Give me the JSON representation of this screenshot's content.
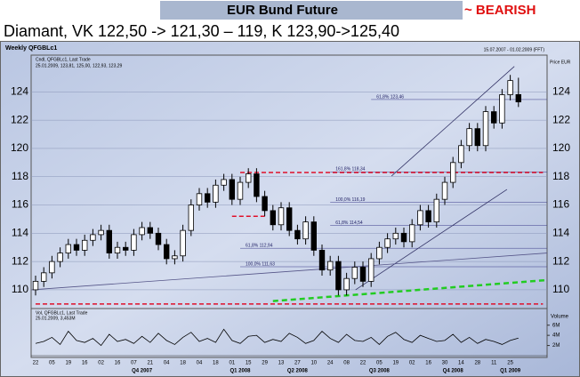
{
  "chart_data": {
    "type": "candlestick",
    "header": "EUR Bund Future",
    "signal": "~ BEARISH",
    "title": "Diamant, VK 122,50 -> 121,30 – 119, K 123,90->125,40",
    "panel_title": "Weekly QFGBLc1",
    "date_range": "15.07.2007 - 01.02.2009 (FFT)",
    "price_label": "Price EUR",
    "legend": [
      "Cndl, QFGBLc1, Last Trade",
      "25.01.2009, 123,81, 125,00, 122,93, 123,29"
    ],
    "volume_legend": [
      "Vol, QFGBLc1, Last Trade",
      "25.01.2009, 3,453M"
    ],
    "volume_label": "Volume",
    "categories": [
      "22",
      null,
      "05",
      null,
      "19",
      null,
      "16",
      null,
      "02",
      null,
      "16",
      null,
      "07",
      null,
      "21",
      null,
      "04",
      null,
      "18",
      null,
      "04",
      null,
      "18",
      null,
      "01",
      null,
      "15",
      null,
      "29",
      null,
      "13",
      null,
      "27",
      null,
      "10",
      null,
      "24",
      null,
      "08",
      null,
      "22",
      null,
      "05",
      null,
      "19",
      null,
      "02",
      null,
      "16",
      null,
      "30",
      null,
      "14",
      null,
      "28",
      null,
      "11",
      null,
      "25",
      null
    ],
    "quarters": [
      {
        "label": "Q4 2007",
        "index": 13
      },
      {
        "label": "Q1 2008",
        "index": 25
      },
      {
        "label": "Q2 2008",
        "index": 32
      },
      {
        "label": "Q3 2008",
        "index": 42
      },
      {
        "label": "Q4 2008",
        "index": 51
      },
      {
        "label": "Q1 2009",
        "index": 58
      }
    ],
    "open": [
      110.0,
      110.6,
      111.2,
      112.0,
      112.6,
      113.2,
      112.8,
      113.5,
      113.9,
      114.2,
      112.6,
      113.0,
      112.8,
      113.9,
      114.4,
      114.0,
      113.2,
      112.2,
      112.4,
      114.2,
      116.0,
      116.8,
      116.2,
      117.4,
      117.8,
      116.4,
      117.6,
      118.2,
      116.6,
      115.6,
      114.6,
      115.8,
      114.2,
      113.6,
      114.8,
      112.8,
      111.4,
      112.0,
      110.0,
      110.8,
      111.6,
      110.6,
      112.2,
      113.0,
      113.6,
      114.0,
      113.4,
      114.6,
      115.6,
      114.8,
      116.4,
      117.6,
      119.0,
      120.2,
      121.4,
      120.2,
      122.6,
      121.8,
      123.8,
      123.81
    ],
    "high": [
      111.0,
      111.6,
      112.4,
      113.0,
      113.6,
      113.6,
      113.9,
      114.3,
      114.6,
      114.6,
      113.4,
      113.4,
      114.3,
      114.8,
      114.8,
      114.4,
      113.6,
      112.8,
      114.6,
      116.4,
      117.2,
      117.2,
      117.8,
      118.2,
      118.2,
      118.0,
      118.6,
      118.6,
      117.0,
      116.0,
      116.2,
      116.2,
      114.6,
      115.2,
      115.2,
      113.2,
      112.4,
      112.4,
      111.2,
      112.0,
      112.0,
      112.6,
      113.4,
      114.0,
      114.4,
      114.4,
      115.0,
      116.0,
      116.0,
      116.8,
      118.0,
      119.4,
      120.6,
      121.8,
      121.8,
      123.0,
      123.0,
      124.2,
      125.2,
      125.0
    ],
    "low": [
      109.6,
      110.2,
      110.8,
      111.6,
      112.2,
      112.4,
      112.4,
      113.1,
      113.5,
      112.2,
      112.2,
      112.4,
      112.4,
      113.5,
      113.6,
      112.8,
      111.8,
      111.8,
      112.0,
      113.8,
      115.6,
      115.8,
      115.8,
      117.0,
      116.0,
      116.0,
      117.2,
      116.2,
      115.2,
      114.2,
      114.2,
      113.8,
      113.2,
      113.2,
      112.4,
      111.0,
      111.0,
      109.6,
      109.6,
      110.4,
      110.2,
      110.2,
      111.8,
      112.6,
      113.2,
      113.0,
      113.0,
      114.2,
      114.4,
      114.4,
      116.0,
      117.2,
      118.6,
      119.8,
      119.8,
      119.8,
      121.4,
      121.4,
      123.4,
      122.93
    ],
    "close": [
      110.6,
      111.2,
      112.0,
      112.6,
      113.2,
      112.8,
      113.5,
      113.9,
      114.2,
      112.6,
      113.0,
      112.8,
      113.9,
      114.4,
      114.0,
      113.2,
      112.2,
      112.4,
      114.2,
      116.0,
      116.8,
      116.2,
      117.4,
      117.8,
      116.4,
      117.6,
      118.2,
      116.6,
      115.6,
      114.6,
      115.8,
      114.2,
      113.6,
      114.8,
      112.8,
      111.4,
      112.0,
      110.0,
      110.8,
      111.6,
      110.6,
      112.2,
      113.0,
      113.6,
      114.0,
      113.4,
      114.6,
      115.6,
      114.8,
      116.4,
      117.6,
      119.0,
      120.2,
      121.4,
      120.2,
      122.6,
      121.8,
      123.8,
      124.8,
      123.29
    ],
    "volume": [
      2.4,
      2.8,
      3.6,
      2.2,
      4.8,
      3.0,
      2.6,
      3.4,
      2.0,
      4.2,
      2.8,
      3.2,
      2.4,
      3.8,
      2.6,
      4.4,
      3.0,
      2.2,
      3.6,
      4.6,
      2.8,
      3.4,
      2.6,
      5.2,
      3.0,
      2.4,
      3.8,
      4.0,
      2.6,
      3.2,
      2.8,
      4.4,
      3.6,
      2.4,
      3.0,
      4.8,
      3.4,
      2.6,
      4.2,
      3.0,
      2.8,
      3.6,
      2.2,
      3.8,
      4.6,
      3.2,
      2.6,
      4.0,
      3.4,
      2.8,
      3.0,
      4.2,
      2.6,
      3.6,
      2.4,
      3.2,
      2.8,
      2.2,
      3.0,
      3.453
    ],
    "up_color": "#ffffff",
    "down_color": "#000000",
    "ylim": [
      108.8,
      126.6
    ],
    "yticks": [
      110,
      112,
      114,
      116,
      118,
      120,
      122,
      124
    ],
    "vol_lim": [
      0,
      7
    ],
    "vol_ticks": [
      {
        "value": 2,
        "label": "2M"
      },
      {
        "value": 4,
        "label": "4M"
      },
      {
        "value": 6,
        "label": "6M"
      }
    ],
    "levels": [
      {
        "value": 118.3,
        "from": 25,
        "to": 62,
        "color": "#e0102a"
      },
      {
        "value": 115.2,
        "from": 24,
        "to": 28,
        "color": "#e0102a"
      },
      {
        "value": 109.0,
        "from": 0,
        "to": 62,
        "color": "#e0102a"
      }
    ],
    "fibs": [
      {
        "label": "61,8%  123,46",
        "value": 123.46,
        "from": 41
      },
      {
        "label": "161,8%  118,34",
        "value": 118.34,
        "from": 36
      },
      {
        "label": "100,0%  116,19",
        "value": 116.19,
        "from": 36
      },
      {
        "label": "61,8%  114,54",
        "value": 114.54,
        "from": 36
      },
      {
        "label": "61,8%  112,94",
        "value": 112.94,
        "from": 25
      },
      {
        "label": "100,0%  111,63",
        "value": 111.63,
        "from": 25
      }
    ],
    "trendlines": [
      {
        "x": [
          43.5,
          58.5
        ],
        "y": [
          118.05,
          125.8
        ],
        "color": "#333366",
        "dash": false
      },
      {
        "x": [
          39.1,
          57.6
        ],
        "y": [
          110.0,
          117.1
        ],
        "color": "#333366",
        "dash": false
      },
      {
        "x": [
          29,
          65
        ],
        "y": [
          109.2,
          110.8
        ],
        "color": "#22cc22",
        "dash": true
      },
      {
        "x": [
          -0.5,
          62.5
        ],
        "y": [
          110.0,
          112.6
        ],
        "color": "#555588",
        "dash": false
      }
    ]
  }
}
